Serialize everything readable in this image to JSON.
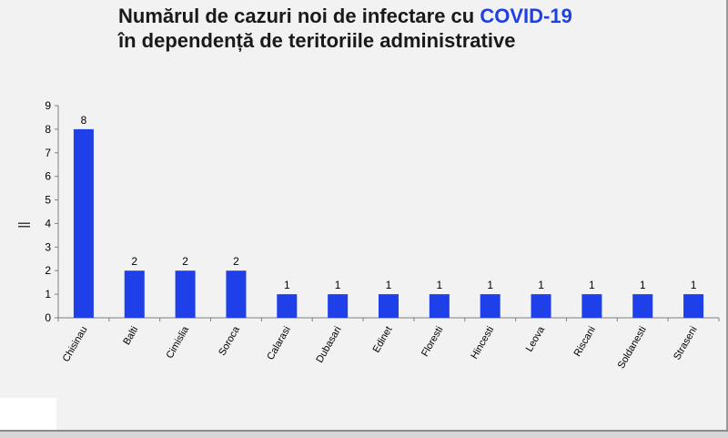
{
  "title": {
    "part1": "Numărul de cazuri noi de infectare cu ",
    "accent": "COVID-19",
    "line2": "în dependență de teritoriile administrative",
    "accent_color": "#2040e0"
  },
  "chart_data": {
    "type": "bar",
    "title": "Numărul de cazuri noi de infectare cu COVID-19 în dependență de teritoriile administrative",
    "categories": [
      "Chisinau",
      "Balti",
      "Cimislia",
      "Soroca",
      "Calarasi",
      "Dubasari",
      "Edinet",
      "Floresti",
      "Hincesti",
      "Leova",
      "Riscani",
      "Soldanesti",
      "Straseni"
    ],
    "values": [
      8,
      2,
      2,
      2,
      1,
      1,
      1,
      1,
      1,
      1,
      1,
      1,
      1
    ],
    "ylabel": "||",
    "xlabel": "",
    "ylim": [
      0,
      9
    ],
    "yticks": [
      0,
      1,
      2,
      3,
      4,
      5,
      6,
      7,
      8,
      9
    ],
    "bar_color": "#1f3fe8",
    "grid": false,
    "data_labels": true
  }
}
